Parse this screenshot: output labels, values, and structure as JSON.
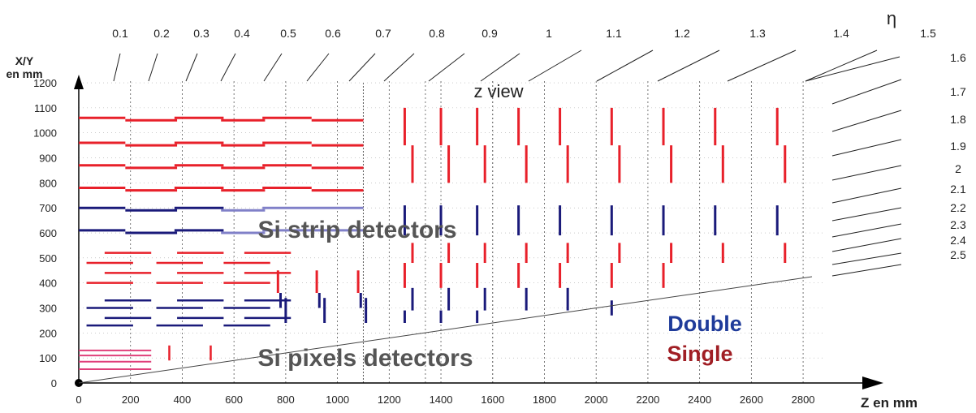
{
  "view_label": "z view",
  "eta_symbol": "η",
  "y_axis_label": [
    "X/Y",
    "en mm"
  ],
  "x_axis_label": "Z en mm",
  "strip_label": "Si strip detectors",
  "pixel_label": "Si pixels detectors",
  "legend": {
    "double": {
      "text": "Double",
      "color": "#1f3b9a"
    },
    "single": {
      "text": "Single",
      "color": "#a01e24"
    }
  },
  "colors": {
    "single": "#e8202a",
    "double": "#1a1a7a",
    "pixel": "#e0407a",
    "axis": "#000000",
    "grid": "#555555"
  },
  "axes": {
    "x_min": 0,
    "x_max": 2900,
    "y_min": 0,
    "y_max": 1300,
    "x_ticks": [
      0,
      200,
      400,
      600,
      800,
      1000,
      1200,
      1400,
      1600,
      1800,
      2000,
      2200,
      2400,
      2600,
      2800
    ],
    "y_ticks": [
      0,
      100,
      200,
      300,
      400,
      500,
      600,
      700,
      800,
      900,
      1000,
      1100,
      1200
    ]
  },
  "eta_top": [
    "0.1",
    "0.2",
    "0.3",
    "0.4",
    "0.5",
    "0.6",
    "0.7",
    "0.8",
    "0.9",
    "1",
    "1.1",
    "1.2",
    "1.3",
    "1.4",
    "1.5"
  ],
  "eta_right": [
    "1.6",
    "1.7",
    "1.8",
    "1.9",
    "2",
    "2.1",
    "2.2",
    "2.3",
    "2.4",
    "2.5"
  ]
}
